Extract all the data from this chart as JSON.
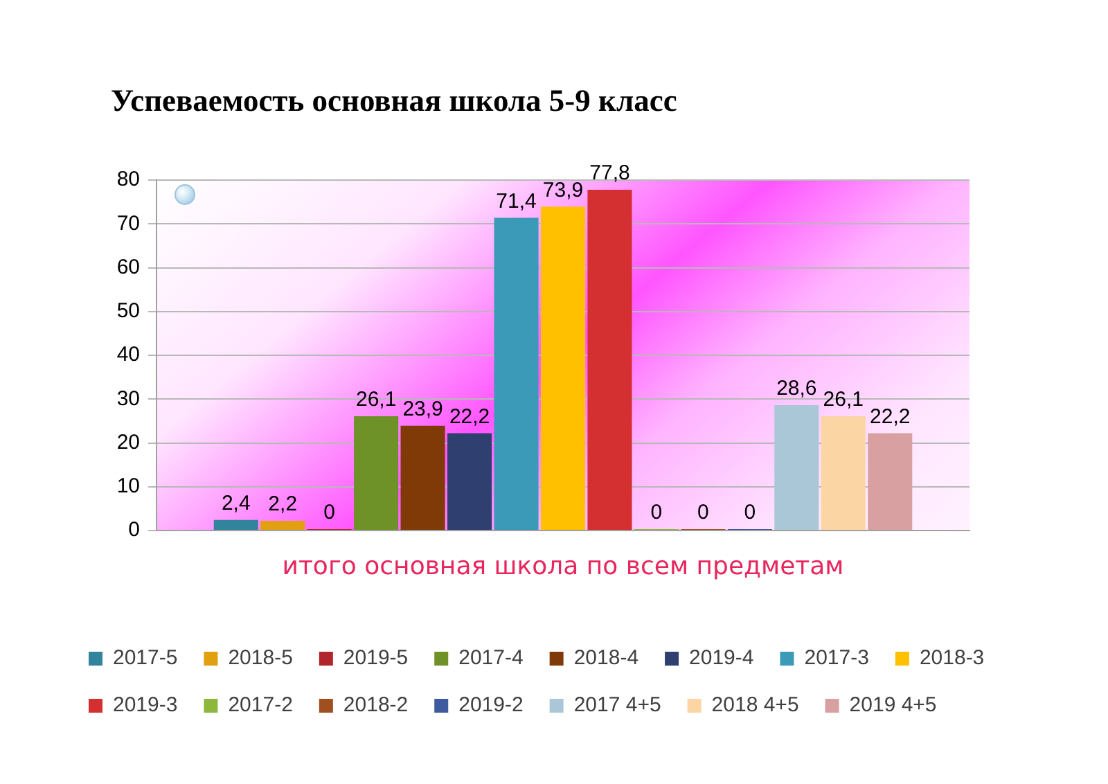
{
  "chart_data": {
    "type": "bar",
    "title": "Успеваемость основная школа 5-9 класс",
    "categories": [
      "итого основная школа по всем предметам"
    ],
    "series": [
      {
        "name": "2017-5",
        "color": "#31849b",
        "values": [
          2.4
        ],
        "value_labels": [
          "2,4"
        ]
      },
      {
        "name": "2018-5",
        "color": "#e0a010",
        "values": [
          2.2
        ],
        "value_labels": [
          "2,2"
        ]
      },
      {
        "name": "2019-5",
        "color": "#b0262b",
        "values": [
          0
        ],
        "value_labels": [
          "0"
        ]
      },
      {
        "name": "2017-4",
        "color": "#6e9128",
        "values": [
          26.1
        ],
        "value_labels": [
          "26,1"
        ]
      },
      {
        "name": "2018-4",
        "color": "#7f3a08",
        "values": [
          23.9
        ],
        "value_labels": [
          "23,9"
        ]
      },
      {
        "name": "2019-4",
        "color": "#2f3f6f",
        "values": [
          22.2
        ],
        "value_labels": [
          "22,2"
        ]
      },
      {
        "name": "2017-3",
        "color": "#3a9ab8",
        "values": [
          71.4
        ],
        "value_labels": [
          "71,4"
        ]
      },
      {
        "name": "2018-3",
        "color": "#ffc000",
        "values": [
          73.9
        ],
        "value_labels": [
          "73,9"
        ]
      },
      {
        "name": "2019-3",
        "color": "#d43032",
        "values": [
          77.8
        ],
        "value_labels": [
          "77,8"
        ]
      },
      {
        "name": "2017-2",
        "color": "#8db83c",
        "values": [
          0
        ],
        "value_labels": [
          "0"
        ]
      },
      {
        "name": "2018-2",
        "color": "#a0501e",
        "values": [
          0
        ],
        "value_labels": [
          "0"
        ]
      },
      {
        "name": "2019-2",
        "color": "#3f5a9f",
        "values": [
          0
        ],
        "value_labels": [
          "0"
        ]
      },
      {
        "name": "2017 4+5",
        "color": "#a9c7d6",
        "values": [
          28.6
        ],
        "value_labels": [
          "28,6"
        ]
      },
      {
        "name": "2018 4+5",
        "color": "#fcd5a5",
        "values": [
          26.1
        ],
        "value_labels": [
          "26,1"
        ]
      },
      {
        "name": "2019 4+5",
        "color": "#d9a0a2",
        "values": [
          22.2
        ],
        "value_labels": [
          "22,2"
        ]
      }
    ],
    "ylim": [
      0,
      80
    ],
    "yticks": [
      0,
      10,
      20,
      30,
      40,
      50,
      60,
      70,
      80
    ],
    "grid": "y",
    "legend": "bottom left"
  }
}
